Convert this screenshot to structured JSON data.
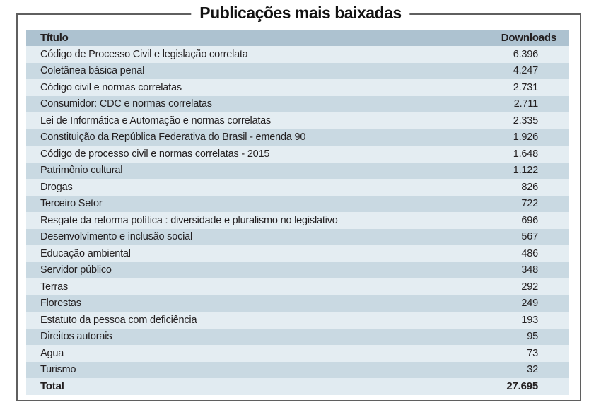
{
  "title": "Publicações mais baixadas",
  "table": {
    "columns": [
      "Título",
      "Downloads"
    ],
    "rows": [
      {
        "titulo": "Código de Processo Civil e legislação correlata",
        "downloads": "6.396"
      },
      {
        "titulo": "Coletânea básica penal",
        "downloads": "4.247"
      },
      {
        "titulo": "Código civil e normas correlatas",
        "downloads": "2.731"
      },
      {
        "titulo": "Consumidor: CDC e normas correlatas",
        "downloads": "2.711"
      },
      {
        "titulo": "Lei de Informática e Automação e normas correlatas",
        "downloads": "2.335"
      },
      {
        "titulo": "Constituição da República Federativa do Brasil - emenda 90",
        "downloads": "1.926"
      },
      {
        "titulo": "Código de processo civil e normas correlatas - 2015",
        "downloads": "1.648"
      },
      {
        "titulo": "Patrimônio cultural",
        "downloads": "1.122"
      },
      {
        "titulo": "Drogas",
        "downloads": "826"
      },
      {
        "titulo": "Terceiro Setor",
        "downloads": "722"
      },
      {
        "titulo": "Resgate da reforma política : diversidade e pluralismo no legislativo",
        "downloads": "696"
      },
      {
        "titulo": "Desenvolvimento e inclusão social",
        "downloads": "567"
      },
      {
        "titulo": "Educação ambiental",
        "downloads": "486"
      },
      {
        "titulo": "Servidor público",
        "downloads": "348"
      },
      {
        "titulo": "Terras",
        "downloads": "292"
      },
      {
        "titulo": "Florestas",
        "downloads": "249"
      },
      {
        "titulo": "Estatuto da pessoa com deficiência",
        "downloads": "193"
      },
      {
        "titulo": "Direitos autorais",
        "downloads": "95"
      },
      {
        "titulo": "Água",
        "downloads": "73"
      },
      {
        "titulo": "Turismo",
        "downloads": "32"
      }
    ],
    "total": {
      "label": "Total",
      "value": "27.695"
    }
  },
  "colors": {
    "header_bg": "#adc2d0",
    "row_light": "#e4edf2",
    "row_dark": "#c9d9e2",
    "total_bg": "#e1ebf1",
    "frame_border": "#5f5f5f",
    "text": "#231f20"
  },
  "chart_data": {
    "type": "table",
    "title": "Publicações mais baixadas",
    "columns": [
      "Título",
      "Downloads"
    ],
    "rows": [
      [
        "Código de Processo Civil e legislação correlata",
        6396
      ],
      [
        "Coletânea básica penal",
        4247
      ],
      [
        "Código civil e normas correlatas",
        2731
      ],
      [
        "Consumidor: CDC e normas correlatas",
        2711
      ],
      [
        "Lei de Informática e Automação e normas correlatas",
        2335
      ],
      [
        "Constituição da República Federativa do Brasil - emenda 90",
        1926
      ],
      [
        "Código de processo civil e normas correlatas - 2015",
        1648
      ],
      [
        "Patrimônio cultural",
        1122
      ],
      [
        "Drogas",
        826
      ],
      [
        "Terceiro Setor",
        722
      ],
      [
        "Resgate da reforma política : diversidade e pluralismo no legislativo",
        696
      ],
      [
        "Desenvolvimento e inclusão social",
        567
      ],
      [
        "Educação ambiental",
        486
      ],
      [
        "Servidor público",
        348
      ],
      [
        "Terras",
        292
      ],
      [
        "Florestas",
        249
      ],
      [
        "Estatuto da pessoa com deficiência",
        193
      ],
      [
        "Direitos autorais",
        95
      ],
      [
        "Água",
        73
      ],
      [
        "Turismo",
        32
      ]
    ],
    "total": [
      "Total",
      27695
    ],
    "layout": {
      "row_striping": true,
      "value_alignment": "right",
      "grid": false
    }
  }
}
